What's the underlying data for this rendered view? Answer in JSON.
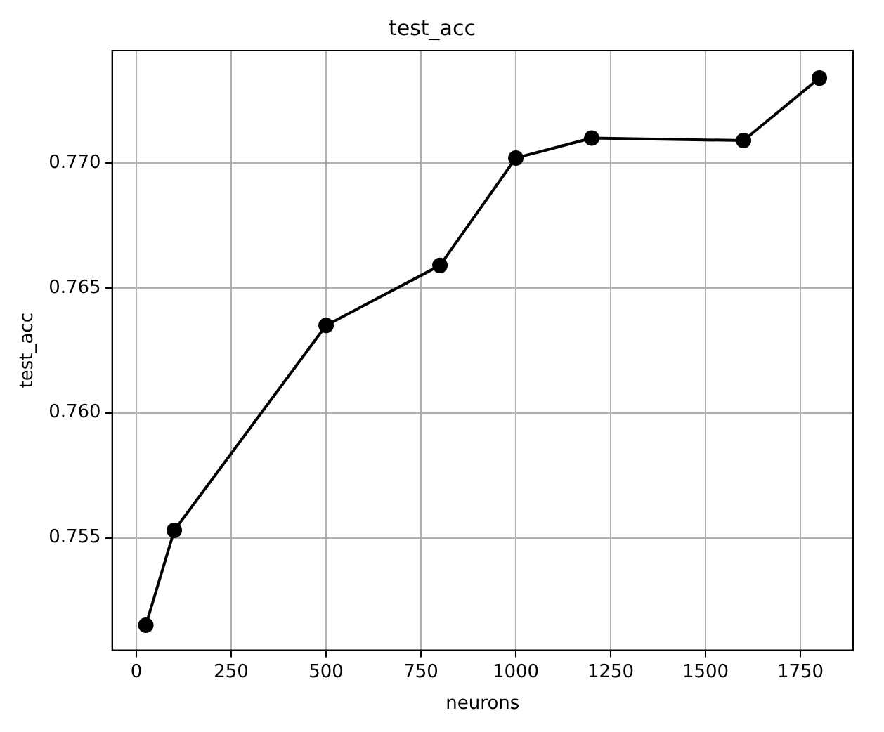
{
  "chart_data": {
    "type": "line",
    "title": "test_acc",
    "xlabel": "neurons",
    "ylabel": "test_acc",
    "x": [
      25,
      100,
      500,
      800,
      1000,
      1200,
      1600,
      1800
    ],
    "series": [
      {
        "color": "#000000",
        "values": [
          0.7515,
          0.7553,
          0.7635,
          0.7659,
          0.7702,
          0.771,
          0.7709,
          0.7734
        ]
      }
    ],
    "xlim": [
      -63.75,
      1888.75
    ],
    "xticks": [
      0,
      250,
      500,
      750,
      1000,
      1250,
      1500,
      1750
    ],
    "ylim": [
      0.7505,
      0.7745
    ],
    "yticks": [
      {
        "value": 0.755,
        "label": "0.755"
      },
      {
        "value": 0.76,
        "label": "0.760"
      },
      {
        "value": 0.765,
        "label": "0.765"
      },
      {
        "value": 0.77,
        "label": "0.770"
      }
    ],
    "grid": true,
    "marker": "circle",
    "line_style": "solid"
  }
}
